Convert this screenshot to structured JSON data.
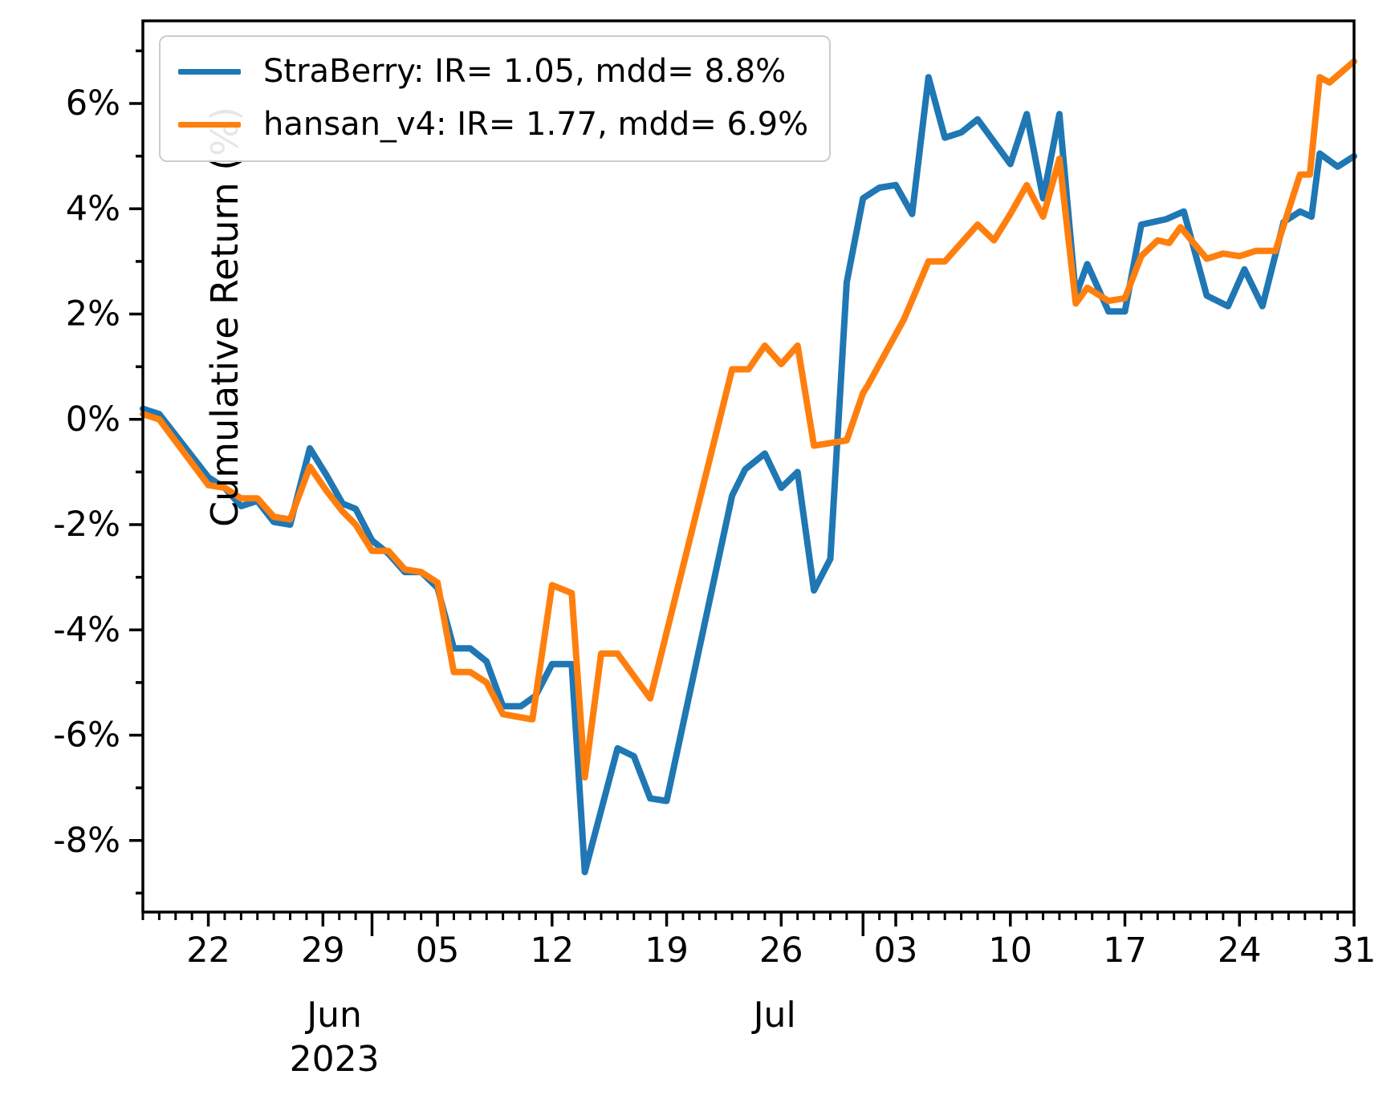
{
  "chart_data": {
    "type": "line",
    "title": "",
    "xlabel": "",
    "ylabel": "Cumulative Return (%)",
    "grid": false,
    "legend_position": "upper left",
    "ylim": [
      -9.36,
      7.57
    ],
    "x_domain_days": 74,
    "y_ticks": [
      {
        "value": 6,
        "label": "6%"
      },
      {
        "value": 4,
        "label": "4%"
      },
      {
        "value": 2,
        "label": "2%"
      },
      {
        "value": 0,
        "label": "0%"
      },
      {
        "value": -2,
        "label": "-2%"
      },
      {
        "value": -4,
        "label": "-4%"
      },
      {
        "value": -6,
        "label": "-6%"
      },
      {
        "value": -8,
        "label": "-8%"
      }
    ],
    "y_minor_ticks": [
      7,
      5,
      3,
      1,
      -1,
      -3,
      -5,
      -7,
      -9
    ],
    "x_ticks": [
      {
        "day": 4,
        "label": "22"
      },
      {
        "day": 11,
        "label": "29"
      },
      {
        "day": 18,
        "label": "05"
      },
      {
        "day": 25,
        "label": "12"
      },
      {
        "day": 32,
        "label": "19"
      },
      {
        "day": 39,
        "label": "26"
      },
      {
        "day": 46,
        "label": "03"
      },
      {
        "day": 53,
        "label": "10"
      },
      {
        "day": 60,
        "label": "17"
      },
      {
        "day": 67,
        "label": "24"
      },
      {
        "day": 74,
        "label": "31"
      }
    ],
    "x_month_start_ticks": [
      14,
      44
    ],
    "x_month_labels": [
      {
        "label": "Jun",
        "sub": "2023",
        "day": 11.7
      },
      {
        "label": "Jul",
        "sub": "",
        "day": 38.6
      }
    ],
    "axis_color": "#000000",
    "series": [
      {
        "name": "StraBerry: IR= 1.05, mdd= 8.8%",
        "color": "#1f77b4",
        "points": [
          [
            0,
            0.2
          ],
          [
            1,
            0.1
          ],
          [
            4,
            -1.1
          ],
          [
            5,
            -1.3
          ],
          [
            6,
            -1.65
          ],
          [
            7,
            -1.55
          ],
          [
            8,
            -1.95
          ],
          [
            9,
            -2.0
          ],
          [
            10.2,
            -0.55
          ],
          [
            11.2,
            -1.05
          ],
          [
            12.2,
            -1.6
          ],
          [
            13,
            -1.7
          ],
          [
            14,
            -2.3
          ],
          [
            15,
            -2.55
          ],
          [
            16,
            -2.9
          ],
          [
            17,
            -2.9
          ],
          [
            18,
            -3.2
          ],
          [
            19,
            -4.35
          ],
          [
            20,
            -4.35
          ],
          [
            21,
            -4.6
          ],
          [
            22,
            -5.45
          ],
          [
            23.1,
            -5.45
          ],
          [
            24,
            -5.25
          ],
          [
            25,
            -4.65
          ],
          [
            26.2,
            -4.65
          ],
          [
            27,
            -8.6
          ],
          [
            29,
            -6.25
          ],
          [
            30,
            -6.4
          ],
          [
            31,
            -7.2
          ],
          [
            32,
            -7.25
          ],
          [
            36,
            -1.45
          ],
          [
            36.8,
            -0.95
          ],
          [
            38,
            -0.65
          ],
          [
            39,
            -1.3
          ],
          [
            40,
            -1.0
          ],
          [
            41,
            -3.25
          ],
          [
            42,
            -2.65
          ],
          [
            43,
            2.6
          ],
          [
            44,
            4.2
          ],
          [
            45,
            4.4
          ],
          [
            46,
            4.45
          ],
          [
            47,
            3.9
          ],
          [
            48,
            6.5
          ],
          [
            49,
            5.35
          ],
          [
            50,
            5.45
          ],
          [
            51,
            5.7
          ],
          [
            53,
            4.85
          ],
          [
            54,
            5.8
          ],
          [
            55,
            4.2
          ],
          [
            56,
            5.8
          ],
          [
            57,
            2.35
          ],
          [
            57.7,
            2.95
          ],
          [
            59,
            2.05
          ],
          [
            60,
            2.05
          ],
          [
            61,
            3.7
          ],
          [
            62.5,
            3.8
          ],
          [
            63.6,
            3.95
          ],
          [
            65,
            2.35
          ],
          [
            66.3,
            2.15
          ],
          [
            67.3,
            2.85
          ],
          [
            68.4,
            2.15
          ],
          [
            69.7,
            3.75
          ],
          [
            70.7,
            3.95
          ],
          [
            71.4,
            3.85
          ],
          [
            71.9,
            5.05
          ],
          [
            73,
            4.8
          ],
          [
            74,
            5.0
          ]
        ]
      },
      {
        "name": "hansan_v4: IR= 1.77, mdd= 6.9%",
        "color": "#ff7f0e",
        "points": [
          [
            0,
            0.1
          ],
          [
            1,
            0.0
          ],
          [
            4,
            -1.25
          ],
          [
            5,
            -1.3
          ],
          [
            6,
            -1.5
          ],
          [
            7,
            -1.5
          ],
          [
            8,
            -1.85
          ],
          [
            9,
            -1.9
          ],
          [
            10.2,
            -0.9
          ],
          [
            11.2,
            -1.35
          ],
          [
            12.2,
            -1.75
          ],
          [
            13,
            -2.0
          ],
          [
            14,
            -2.5
          ],
          [
            15,
            -2.5
          ],
          [
            16,
            -2.85
          ],
          [
            17,
            -2.9
          ],
          [
            18,
            -3.1
          ],
          [
            19,
            -4.8
          ],
          [
            20,
            -4.8
          ],
          [
            21,
            -5.0
          ],
          [
            22,
            -5.6
          ],
          [
            23.8,
            -5.7
          ],
          [
            25,
            -3.15
          ],
          [
            26.2,
            -3.3
          ],
          [
            27,
            -6.8
          ],
          [
            28,
            -4.45
          ],
          [
            29,
            -4.45
          ],
          [
            31,
            -5.3
          ],
          [
            36,
            0.95
          ],
          [
            37,
            0.95
          ],
          [
            38,
            1.4
          ],
          [
            39,
            1.05
          ],
          [
            40,
            1.4
          ],
          [
            41,
            -0.5
          ],
          [
            42,
            -0.45
          ],
          [
            43,
            -0.4
          ],
          [
            44,
            0.5
          ],
          [
            44.3,
            0.65
          ],
          [
            46.5,
            1.9
          ],
          [
            48,
            3.0
          ],
          [
            49,
            3.0
          ],
          [
            51,
            3.7
          ],
          [
            52,
            3.4
          ],
          [
            53,
            3.9
          ],
          [
            54,
            4.45
          ],
          [
            55,
            3.85
          ],
          [
            56,
            4.95
          ],
          [
            57,
            2.2
          ],
          [
            57.7,
            2.5
          ],
          [
            59,
            2.25
          ],
          [
            60,
            2.3
          ],
          [
            61,
            3.1
          ],
          [
            62,
            3.4
          ],
          [
            62.7,
            3.35
          ],
          [
            63.4,
            3.65
          ],
          [
            65,
            3.05
          ],
          [
            66,
            3.15
          ],
          [
            67,
            3.1
          ],
          [
            68,
            3.2
          ],
          [
            69.2,
            3.2
          ],
          [
            70.7,
            4.65
          ],
          [
            71.3,
            4.65
          ],
          [
            71.9,
            6.5
          ],
          [
            72.5,
            6.4
          ],
          [
            74,
            6.8
          ]
        ]
      }
    ]
  }
}
